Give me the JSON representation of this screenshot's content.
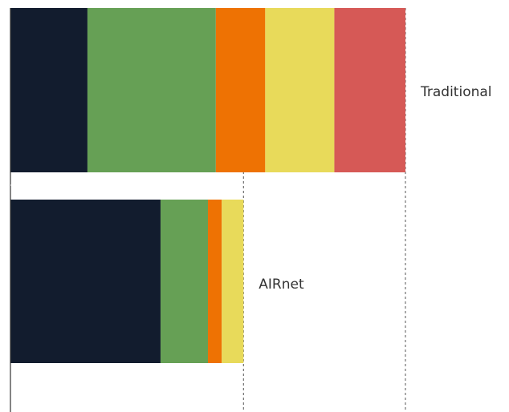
{
  "chart_data": {
    "type": "bar",
    "orientation": "horizontal",
    "stacked": true,
    "title": "",
    "xlabel": "",
    "ylabel": "",
    "categories": [
      "Traditional",
      "AIRnet"
    ],
    "xlim": [
      0,
      100
    ],
    "axis_ticks_visible": false,
    "reference_lines": {
      "style": "dashed",
      "at_bar_totals": [
        100,
        59
      ]
    },
    "segments": [
      {
        "color": "#121c2e",
        "values": [
          19.5,
          38.0
        ]
      },
      {
        "color": "#66a055",
        "values": [
          32.5,
          12.0
        ]
      },
      {
        "color": "#ee7203",
        "values": [
          12.5,
          3.5
        ]
      },
      {
        "color": "#e8da5a",
        "values": [
          17.5,
          5.5
        ]
      },
      {
        "color": "#d65956",
        "values": [
          18.0,
          0
        ]
      }
    ]
  }
}
